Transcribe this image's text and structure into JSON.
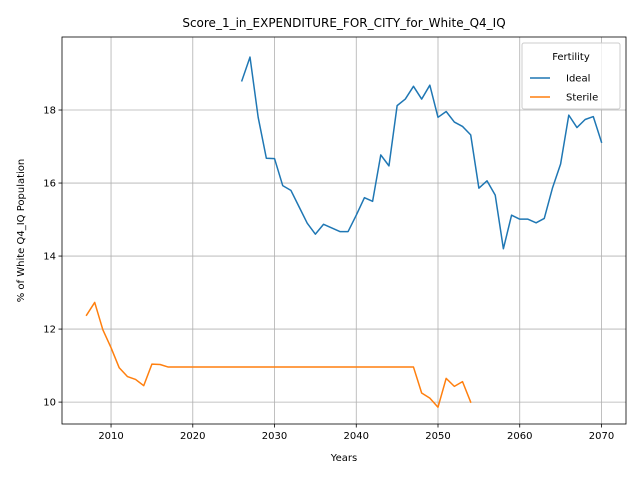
{
  "chart_data": {
    "type": "line",
    "title": "Score_1_in_EXPENDITURE_FOR_CITY_for_White_Q4_IQ",
    "xlabel": "Years",
    "ylabel": "% of White Q4_IQ Population",
    "xlim": [
      2004,
      2073
    ],
    "ylim": [
      9.4,
      20.0
    ],
    "xticks": [
      2010,
      2020,
      2030,
      2040,
      2050,
      2060,
      2070
    ],
    "yticks": [
      10,
      12,
      14,
      16,
      18
    ],
    "grid": true,
    "legend": {
      "title": "Fertility",
      "placement": "top-right"
    },
    "series": [
      {
        "name": "Ideal",
        "color": "#1f77b4",
        "x": [
          2026,
          2027,
          2028,
          2029,
          2030,
          2031,
          2032,
          2033,
          2034,
          2035,
          2036,
          2037,
          2038,
          2039,
          2040,
          2041,
          2042,
          2043,
          2044,
          2045,
          2046,
          2047,
          2048,
          2049,
          2050,
          2051,
          2052,
          2053,
          2054,
          2055,
          2056,
          2057,
          2058,
          2059,
          2060,
          2061,
          2062,
          2063,
          2064,
          2065,
          2066,
          2067,
          2068,
          2069,
          2070
        ],
        "y": [
          18.8,
          19.45,
          17.8,
          16.68,
          16.67,
          15.93,
          15.8,
          15.35,
          14.9,
          14.6,
          14.87,
          14.77,
          14.67,
          14.67,
          15.12,
          15.6,
          15.5,
          16.77,
          16.47,
          18.12,
          18.3,
          18.65,
          18.3,
          18.68,
          17.8,
          17.96,
          17.67,
          17.55,
          17.32,
          15.86,
          16.06,
          15.67,
          14.2,
          15.12,
          15.01,
          15.01,
          14.91,
          15.03,
          15.86,
          16.52,
          17.86,
          17.52,
          17.74,
          17.82,
          17.12
        ]
      },
      {
        "name": "Sterile",
        "color": "#ff7f0e",
        "x": [
          2007,
          2008,
          2009,
          2010,
          2011,
          2012,
          2013,
          2014,
          2015,
          2016,
          2017,
          2018,
          2019,
          2020,
          2021,
          2022,
          2023,
          2024,
          2025,
          2026,
          2027,
          2028,
          2029,
          2030,
          2031,
          2032,
          2033,
          2034,
          2035,
          2036,
          2037,
          2038,
          2039,
          2040,
          2041,
          2042,
          2043,
          2044,
          2045,
          2046,
          2047,
          2048,
          2049,
          2050,
          2051,
          2052,
          2053,
          2054
        ],
        "y": [
          12.38,
          12.73,
          11.98,
          11.49,
          10.94,
          10.7,
          10.62,
          10.45,
          11.04,
          11.03,
          10.96,
          10.96,
          10.96,
          10.96,
          10.96,
          10.96,
          10.96,
          10.96,
          10.96,
          10.96,
          10.96,
          10.96,
          10.96,
          10.96,
          10.96,
          10.96,
          10.96,
          10.96,
          10.96,
          10.96,
          10.96,
          10.96,
          10.96,
          10.96,
          10.96,
          10.96,
          10.96,
          10.96,
          10.96,
          10.96,
          10.96,
          10.25,
          10.11,
          9.86,
          10.65,
          10.43,
          10.56,
          10.0
        ]
      }
    ]
  }
}
